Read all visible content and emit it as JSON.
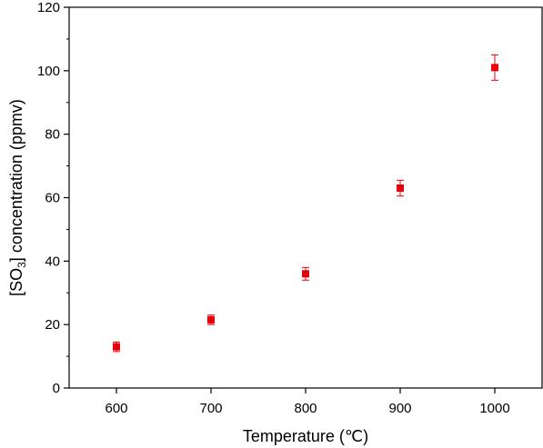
{
  "chart_data": {
    "type": "scatter",
    "title": "",
    "xlabel": "Temperature (℃)",
    "ylabel": {
      "prefix": "[SO",
      "subscript": "3",
      "suffix": "] concentration (ppmv)"
    },
    "xlim": [
      550,
      1050
    ],
    "ylim": [
      0,
      120
    ],
    "x_ticks": [
      600,
      700,
      800,
      900,
      1000
    ],
    "y_ticks": [
      0,
      20,
      40,
      60,
      80,
      100,
      120
    ],
    "grid": false,
    "legend": "none",
    "series": [
      {
        "color": "#e8000b",
        "marker": "square",
        "points": [
          {
            "x": 600,
            "y": 13,
            "err": 1.5
          },
          {
            "x": 700,
            "y": 21.5,
            "err": 1.5
          },
          {
            "x": 800,
            "y": 36,
            "err": 2
          },
          {
            "x": 900,
            "y": 63,
            "err": 2.5
          },
          {
            "x": 1000,
            "y": 101,
            "err": 4
          }
        ]
      }
    ]
  }
}
